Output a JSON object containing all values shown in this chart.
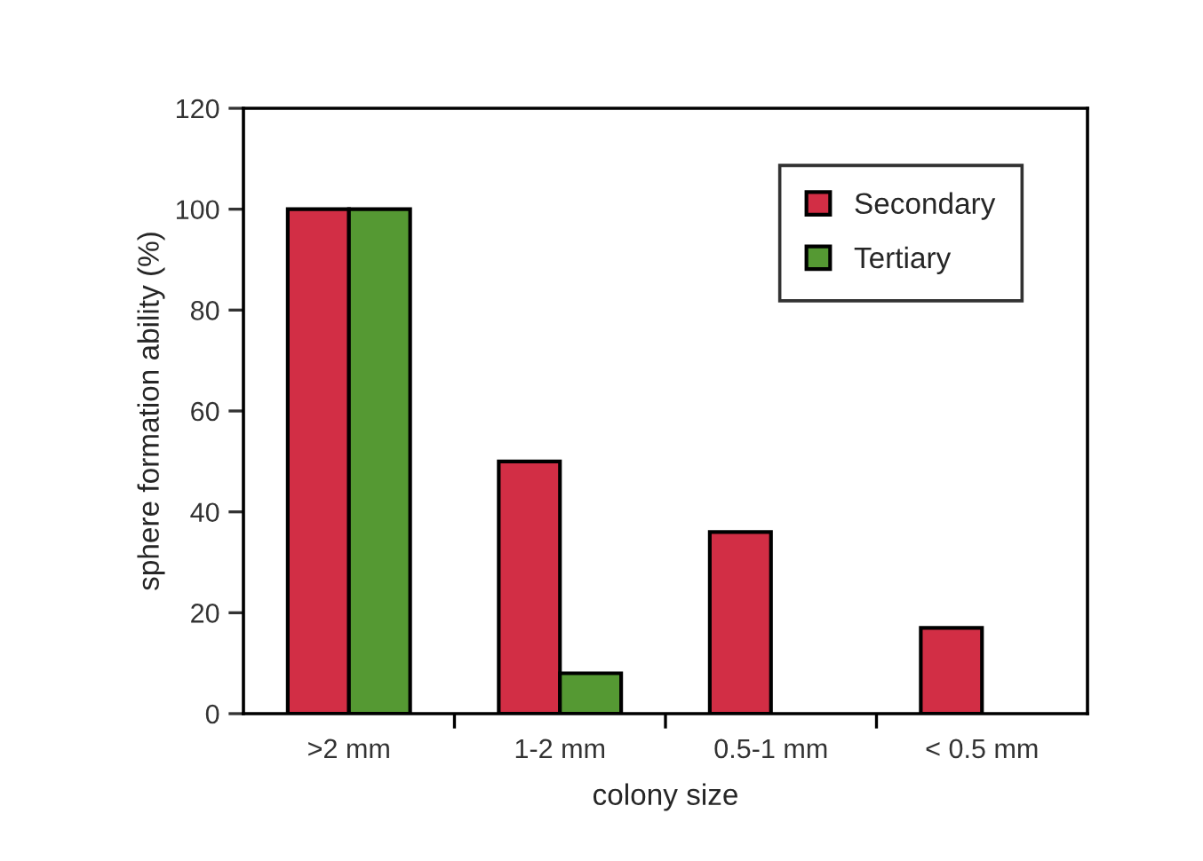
{
  "chart_data": {
    "type": "bar",
    "xlabel": "colony size",
    "ylabel": "sphere formation ability (%)",
    "categories": [
      ">2 mm",
      "1-2 mm",
      "0.5-1 mm",
      "< 0.5 mm"
    ],
    "series": [
      {
        "name": "Secondary",
        "color": "#d22e45",
        "values": [
          100,
          50,
          36,
          17
        ]
      },
      {
        "name": "Tertiary",
        "color": "#559933",
        "values": [
          100,
          8,
          null,
          null
        ]
      }
    ],
    "ylim": [
      0,
      120
    ],
    "yticks": [
      0,
      20,
      40,
      60,
      80,
      100,
      120
    ],
    "grid": false,
    "legend": "top right"
  }
}
